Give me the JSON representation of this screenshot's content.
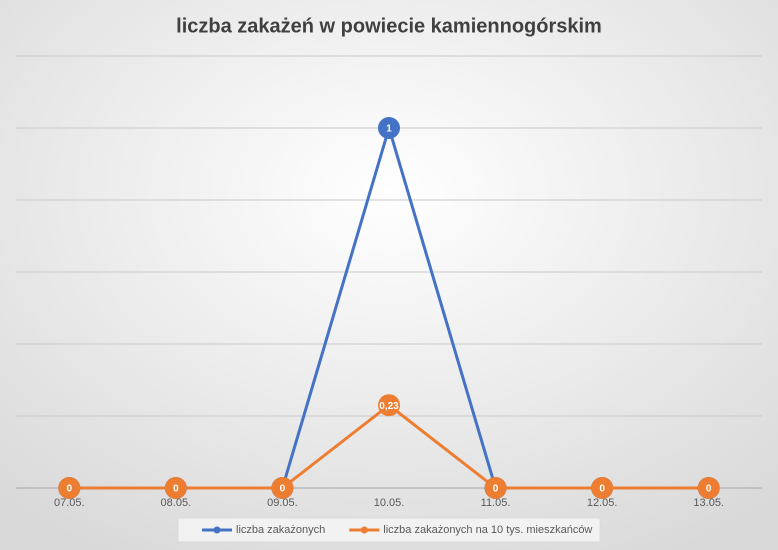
{
  "chart_data": {
    "type": "line",
    "title": "liczba zakażeń w powiecie kamiennogórskim",
    "categories": [
      "07.05.",
      "08.05.",
      "09.05.",
      "10.05.",
      "11.05.",
      "12.05.",
      "13.05."
    ],
    "series": [
      {
        "name": "liczba zakażonych",
        "color": "#4472c4",
        "values": [
          0,
          0,
          0,
          1,
          0,
          0,
          0
        ]
      },
      {
        "name": "liczba zakażonych na 10 tys. mieszkańców",
        "color": "#ed7d31",
        "values": [
          0,
          0,
          0,
          0.23,
          0,
          0,
          0
        ],
        "value_labels": [
          "0",
          "0",
          "0",
          "0,23",
          "0",
          "0",
          "0"
        ]
      }
    ],
    "ylim": [
      0,
      1.2
    ],
    "yticks": [
      0,
      0.2,
      0.4,
      0.6,
      0.8,
      1,
      1.2
    ],
    "grid": true,
    "legend": "bottom"
  }
}
